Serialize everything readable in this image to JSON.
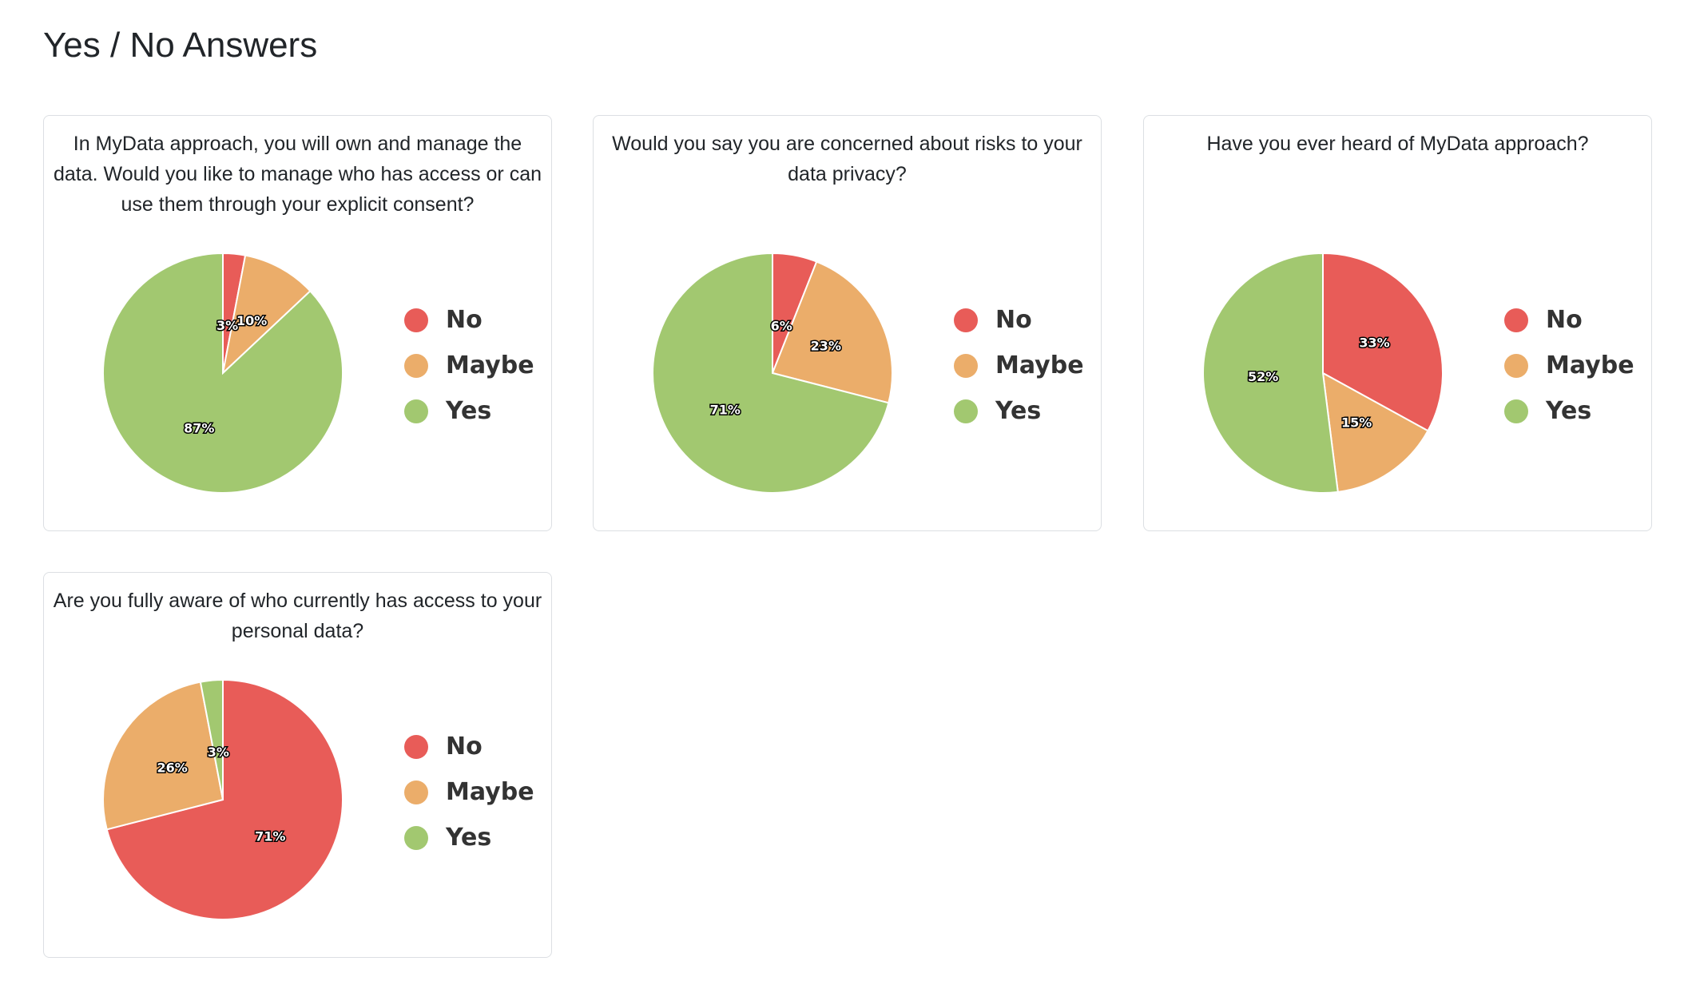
{
  "page": {
    "title": "Yes / No Answers"
  },
  "colors": {
    "No": "#e85c58",
    "Maybe": "#ebad6a",
    "Yes": "#a2c870"
  },
  "chart_data": [
    {
      "type": "pie",
      "title": "In MyData approach, you will own and manage the data. Would you like to manage who has access or can use them through your explicit consent?",
      "categories": [
        "No",
        "Maybe",
        "Yes"
      ],
      "values": [
        3,
        10,
        87
      ],
      "labels": [
        "3%",
        "10%",
        "87%"
      ],
      "legend": "right"
    },
    {
      "type": "pie",
      "title": "Would you say you are concerned about risks to your data privacy?",
      "categories": [
        "No",
        "Maybe",
        "Yes"
      ],
      "values": [
        6,
        23,
        71
      ],
      "labels": [
        "6%",
        "23%",
        "71%"
      ],
      "legend": "right"
    },
    {
      "type": "pie",
      "title": "Have you ever heard of MyData approach?",
      "categories": [
        "No",
        "Maybe",
        "Yes"
      ],
      "values": [
        33,
        15,
        52
      ],
      "labels": [
        "33%",
        "15%",
        "52%"
      ],
      "legend": "right"
    },
    {
      "type": "pie",
      "title": "Are you fully aware of who currently has access to your personal data?",
      "categories": [
        "No",
        "Maybe",
        "Yes"
      ],
      "values": [
        71,
        26,
        3
      ],
      "labels": [
        "71%",
        "26%",
        "3%"
      ],
      "legend": "right"
    }
  ]
}
